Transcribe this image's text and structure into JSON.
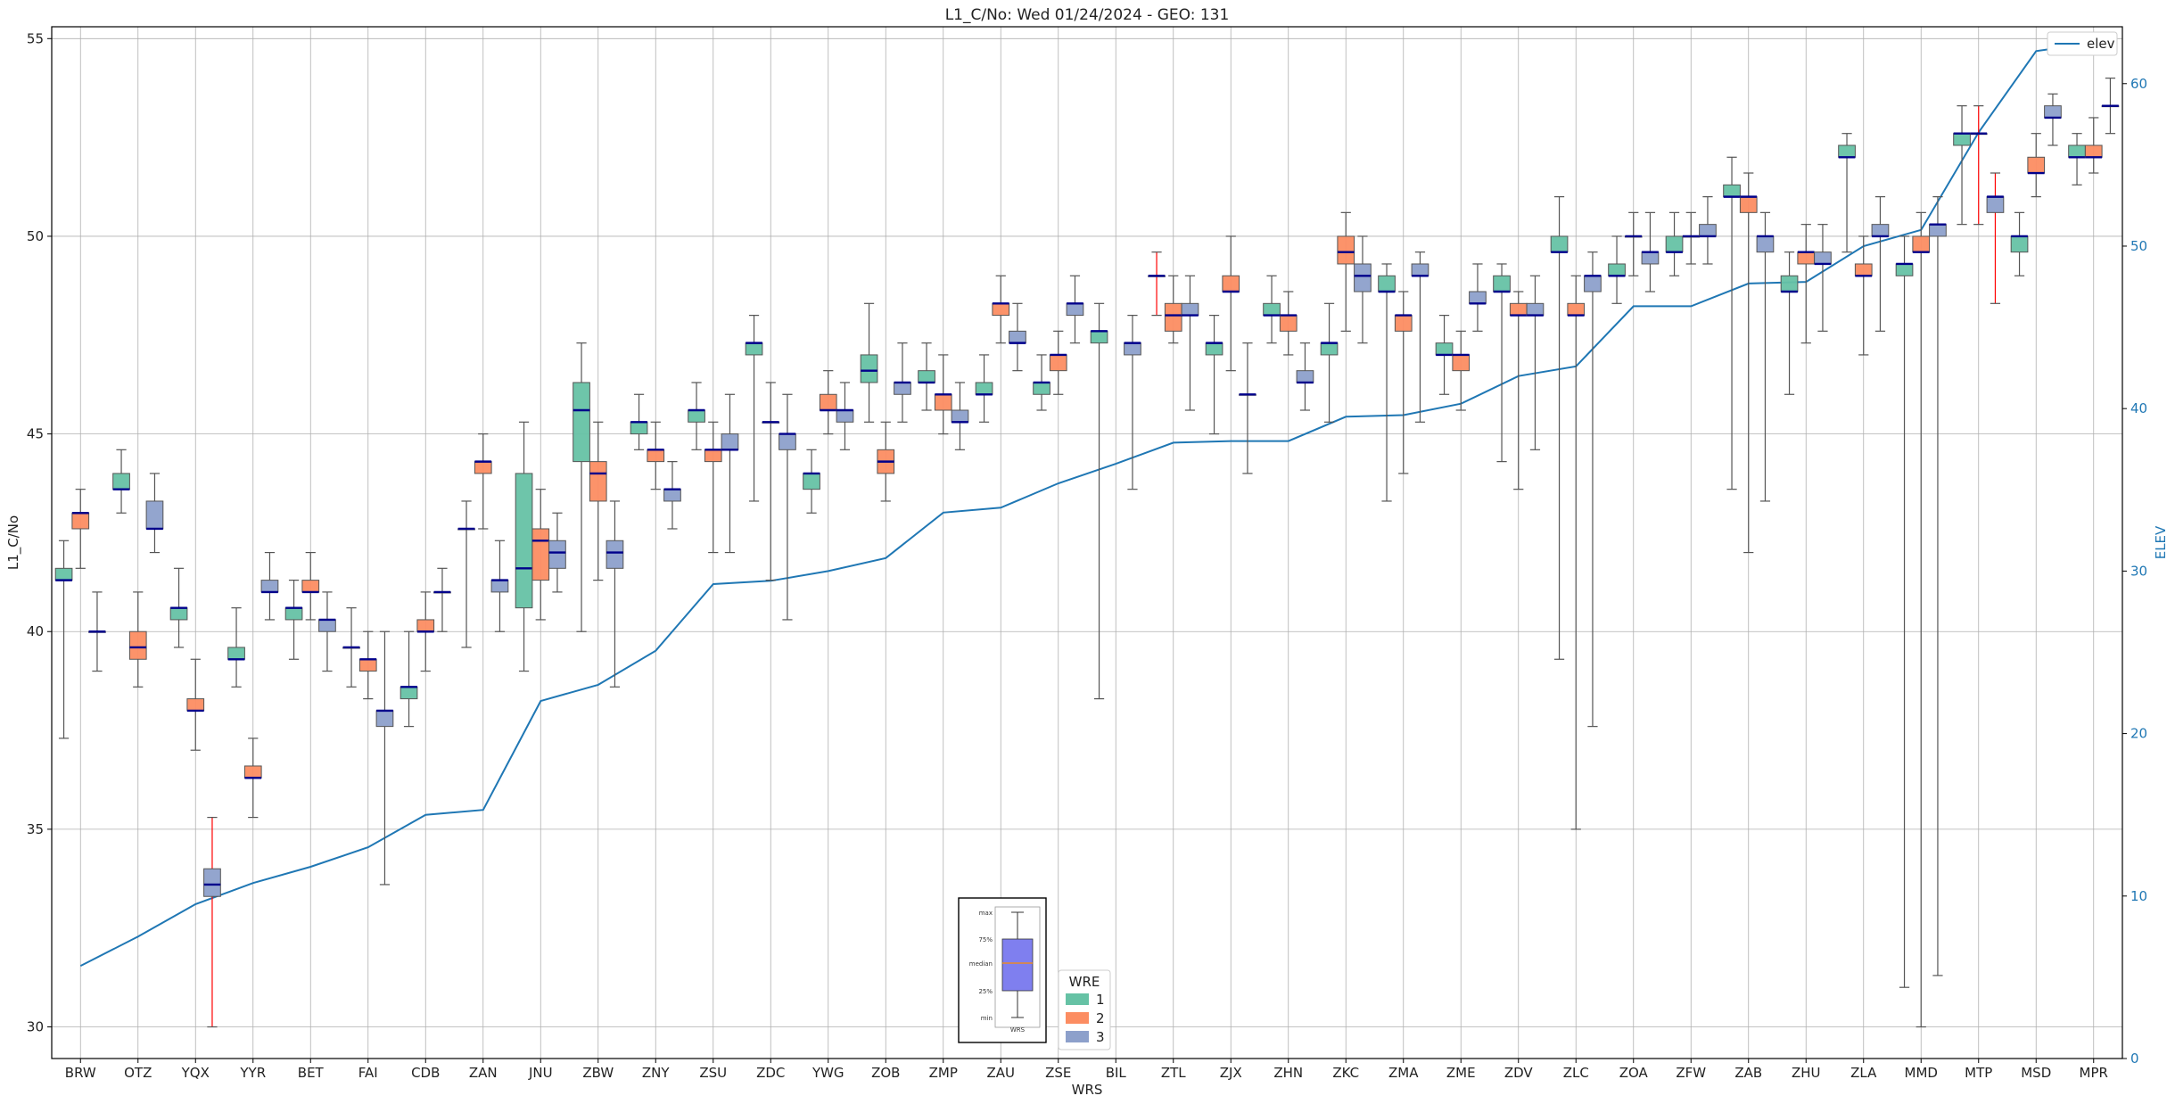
{
  "chart_data": {
    "type": "box",
    "title": "L1_C/No: Wed 01/24/2024 - GEO: 131",
    "xlabel": "WRS",
    "ylabel": "L1_C/No",
    "y2label": "ELEV",
    "ylim": [
      29.2,
      55.3
    ],
    "y2lim": [
      0,
      63.5
    ],
    "yticks": [
      30,
      35,
      40,
      45,
      50,
      55
    ],
    "y2ticks": [
      0,
      10,
      20,
      30,
      40,
      50,
      60
    ],
    "grid": true,
    "colors": {
      "wre1": "#66c2a5",
      "wre2": "#fc8d62",
      "wre3": "#8da0cb",
      "median": "#00008b",
      "whisker": "#555555",
      "outlier_whisker": "#ff0000",
      "elev": "#1f77b4",
      "axis2": "#1f77b4"
    },
    "categories": [
      "BRW",
      "OTZ",
      "YQX",
      "YYR",
      "BET",
      "FAI",
      "CDB",
      "ZAN",
      "JNU",
      "ZBW",
      "ZNY",
      "ZSU",
      "ZDC",
      "YWG",
      "ZOB",
      "ZMP",
      "ZAU",
      "ZSE",
      "BIL",
      "ZTL",
      "ZJX",
      "ZHN",
      "ZKC",
      "ZMA",
      "ZME",
      "ZDV",
      "ZLC",
      "ZOA",
      "ZFW",
      "ZAB",
      "ZHU",
      "ZLA",
      "MMD",
      "MTP",
      "MSD",
      "MPR"
    ],
    "boxes": [
      {
        "cat": "BRW",
        "wre": 1,
        "min": 37.3,
        "q1": 41.3,
        "median": 41.3,
        "q3": 41.6,
        "max": 42.3
      },
      {
        "cat": "BRW",
        "wre": 2,
        "min": 41.6,
        "q1": 42.6,
        "median": 43.0,
        "q3": 43.0,
        "max": 43.6
      },
      {
        "cat": "BRW",
        "wre": 3,
        "min": 39.0,
        "q1": 40.0,
        "median": 40.0,
        "q3": 40.0,
        "max": 41.0
      },
      {
        "cat": "OTZ",
        "wre": 1,
        "min": 43.0,
        "q1": 43.6,
        "median": 43.6,
        "q3": 44.0,
        "max": 44.6
      },
      {
        "cat": "OTZ",
        "wre": 2,
        "min": 38.6,
        "q1": 39.3,
        "median": 39.6,
        "q3": 40.0,
        "max": 41.0
      },
      {
        "cat": "OTZ",
        "wre": 3,
        "min": 42.0,
        "q1": 42.6,
        "median": 42.6,
        "q3": 43.3,
        "max": 44.0
      },
      {
        "cat": "YQX",
        "wre": 1,
        "min": 39.6,
        "q1": 40.3,
        "median": 40.6,
        "q3": 40.6,
        "max": 41.6
      },
      {
        "cat": "YQX",
        "wre": 2,
        "min": 37.0,
        "q1": 38.0,
        "median": 38.0,
        "q3": 38.3,
        "max": 39.3
      },
      {
        "cat": "YQX",
        "wre": 3,
        "min": 30.0,
        "q1": 33.3,
        "median": 33.6,
        "q3": 34.0,
        "max": 35.3,
        "red": true
      },
      {
        "cat": "YYR",
        "wre": 1,
        "min": 38.6,
        "q1": 39.3,
        "median": 39.3,
        "q3": 39.6,
        "max": 40.6
      },
      {
        "cat": "YYR",
        "wre": 2,
        "min": 35.3,
        "q1": 36.3,
        "median": 36.3,
        "q3": 36.6,
        "max": 37.3
      },
      {
        "cat": "YYR",
        "wre": 3,
        "min": 40.3,
        "q1": 41.0,
        "median": 41.0,
        "q3": 41.3,
        "max": 42.0
      },
      {
        "cat": "BET",
        "wre": 1,
        "min": 39.3,
        "q1": 40.3,
        "median": 40.6,
        "q3": 40.6,
        "max": 41.3
      },
      {
        "cat": "BET",
        "wre": 2,
        "min": 40.3,
        "q1": 41.0,
        "median": 41.0,
        "q3": 41.3,
        "max": 42.0
      },
      {
        "cat": "BET",
        "wre": 3,
        "min": 39.0,
        "q1": 40.0,
        "median": 40.3,
        "q3": 40.3,
        "max": 41.0
      },
      {
        "cat": "FAI",
        "wre": 1,
        "min": 38.6,
        "q1": 39.6,
        "median": 39.6,
        "q3": 39.6,
        "max": 40.6
      },
      {
        "cat": "FAI",
        "wre": 2,
        "min": 38.3,
        "q1": 39.0,
        "median": 39.3,
        "q3": 39.3,
        "max": 40.0
      },
      {
        "cat": "FAI",
        "wre": 3,
        "min": 33.6,
        "q1": 37.6,
        "median": 38.0,
        "q3": 38.0,
        "max": 40.0
      },
      {
        "cat": "CDB",
        "wre": 1,
        "min": 37.6,
        "q1": 38.3,
        "median": 38.6,
        "q3": 38.6,
        "max": 40.0
      },
      {
        "cat": "CDB",
        "wre": 2,
        "min": 39.0,
        "q1": 40.0,
        "median": 40.0,
        "q3": 40.3,
        "max": 41.0
      },
      {
        "cat": "CDB",
        "wre": 3,
        "min": 40.0,
        "q1": 41.0,
        "median": 41.0,
        "q3": 41.0,
        "max": 41.6
      },
      {
        "cat": "ZAN",
        "wre": 1,
        "min": 39.6,
        "q1": 42.6,
        "median": 42.6,
        "q3": 42.6,
        "max": 43.3
      },
      {
        "cat": "ZAN",
        "wre": 2,
        "min": 42.6,
        "q1": 44.0,
        "median": 44.3,
        "q3": 44.3,
        "max": 45.0
      },
      {
        "cat": "ZAN",
        "wre": 3,
        "min": 40.0,
        "q1": 41.0,
        "median": 41.3,
        "q3": 41.3,
        "max": 42.3
      },
      {
        "cat": "JNU",
        "wre": 1,
        "min": 39.0,
        "q1": 40.6,
        "median": 41.6,
        "q3": 44.0,
        "max": 45.3
      },
      {
        "cat": "JNU",
        "wre": 2,
        "min": 40.3,
        "q1": 41.3,
        "median": 42.3,
        "q3": 42.6,
        "max": 43.6
      },
      {
        "cat": "JNU",
        "wre": 3,
        "min": 41.0,
        "q1": 41.6,
        "median": 42.0,
        "q3": 42.3,
        "max": 43.0
      },
      {
        "cat": "ZBW",
        "wre": 1,
        "min": 40.0,
        "q1": 44.3,
        "median": 45.6,
        "q3": 46.3,
        "max": 47.3
      },
      {
        "cat": "ZBW",
        "wre": 2,
        "min": 41.3,
        "q1": 43.3,
        "median": 44.0,
        "q3": 44.3,
        "max": 45.3
      },
      {
        "cat": "ZBW",
        "wre": 3,
        "min": 38.6,
        "q1": 41.6,
        "median": 42.0,
        "q3": 42.3,
        "max": 43.3
      },
      {
        "cat": "ZNY",
        "wre": 1,
        "min": 44.6,
        "q1": 45.0,
        "median": 45.3,
        "q3": 45.3,
        "max": 46.0
      },
      {
        "cat": "ZNY",
        "wre": 2,
        "min": 43.6,
        "q1": 44.3,
        "median": 44.6,
        "q3": 44.6,
        "max": 45.3
      },
      {
        "cat": "ZNY",
        "wre": 3,
        "min": 42.6,
        "q1": 43.3,
        "median": 43.6,
        "q3": 43.6,
        "max": 44.3
      },
      {
        "cat": "ZSU",
        "wre": 1,
        "min": 44.6,
        "q1": 45.3,
        "median": 45.6,
        "q3": 45.6,
        "max": 46.3
      },
      {
        "cat": "ZSU",
        "wre": 2,
        "min": 42.0,
        "q1": 44.3,
        "median": 44.6,
        "q3": 44.6,
        "max": 45.3
      },
      {
        "cat": "ZSU",
        "wre": 3,
        "min": 42.0,
        "q1": 44.6,
        "median": 44.6,
        "q3": 45.0,
        "max": 46.0
      },
      {
        "cat": "ZDC",
        "wre": 1,
        "min": 43.3,
        "q1": 47.0,
        "median": 47.3,
        "q3": 47.3,
        "max": 48.0
      },
      {
        "cat": "ZDC",
        "wre": 2,
        "min": 41.3,
        "q1": 45.3,
        "median": 45.3,
        "q3": 45.3,
        "max": 46.3
      },
      {
        "cat": "ZDC",
        "wre": 3,
        "min": 40.3,
        "q1": 44.6,
        "median": 45.0,
        "q3": 45.0,
        "max": 46.0
      },
      {
        "cat": "YWG",
        "wre": 1,
        "min": 43.0,
        "q1": 43.6,
        "median": 44.0,
        "q3": 44.0,
        "max": 44.6
      },
      {
        "cat": "YWG",
        "wre": 2,
        "min": 45.0,
        "q1": 45.6,
        "median": 45.6,
        "q3": 46.0,
        "max": 46.6
      },
      {
        "cat": "YWG",
        "wre": 3,
        "min": 44.6,
        "q1": 45.3,
        "median": 45.6,
        "q3": 45.6,
        "max": 46.3
      },
      {
        "cat": "ZOB",
        "wre": 1,
        "min": 45.3,
        "q1": 46.3,
        "median": 46.6,
        "q3": 47.0,
        "max": 48.3
      },
      {
        "cat": "ZOB",
        "wre": 2,
        "min": 43.3,
        "q1": 44.0,
        "median": 44.3,
        "q3": 44.6,
        "max": 45.3
      },
      {
        "cat": "ZOB",
        "wre": 3,
        "min": 45.3,
        "q1": 46.0,
        "median": 46.3,
        "q3": 46.3,
        "max": 47.3
      },
      {
        "cat": "ZMP",
        "wre": 1,
        "min": 45.6,
        "q1": 46.3,
        "median": 46.3,
        "q3": 46.6,
        "max": 47.3
      },
      {
        "cat": "ZMP",
        "wre": 2,
        "min": 45.0,
        "q1": 45.6,
        "median": 46.0,
        "q3": 46.0,
        "max": 47.0
      },
      {
        "cat": "ZMP",
        "wre": 3,
        "min": 44.6,
        "q1": 45.3,
        "median": 45.3,
        "q3": 45.6,
        "max": 46.3
      },
      {
        "cat": "ZAU",
        "wre": 1,
        "min": 45.3,
        "q1": 46.0,
        "median": 46.0,
        "q3": 46.3,
        "max": 47.0
      },
      {
        "cat": "ZAU",
        "wre": 2,
        "min": 47.3,
        "q1": 48.0,
        "median": 48.3,
        "q3": 48.3,
        "max": 49.0
      },
      {
        "cat": "ZAU",
        "wre": 3,
        "min": 46.6,
        "q1": 47.3,
        "median": 47.3,
        "q3": 47.6,
        "max": 48.3
      },
      {
        "cat": "ZSE",
        "wre": 1,
        "min": 45.6,
        "q1": 46.0,
        "median": 46.3,
        "q3": 46.3,
        "max": 47.0
      },
      {
        "cat": "ZSE",
        "wre": 2,
        "min": 46.0,
        "q1": 46.6,
        "median": 47.0,
        "q3": 47.0,
        "max": 47.6
      },
      {
        "cat": "ZSE",
        "wre": 3,
        "min": 47.3,
        "q1": 48.0,
        "median": 48.3,
        "q3": 48.3,
        "max": 49.0
      },
      {
        "cat": "BIL",
        "wre": 1,
        "min": 38.3,
        "q1": 47.3,
        "median": 47.6,
        "q3": 47.6,
        "max": 48.3
      },
      {
        "cat": "BIL",
        "wre": 3,
        "min": 43.6,
        "q1": 47.0,
        "median": 47.3,
        "q3": 47.3,
        "max": 48.0
      },
      {
        "cat": "ZTL",
        "wre": 1,
        "min": 48.0,
        "q1": 49.0,
        "median": 49.0,
        "q3": 49.0,
        "max": 49.6,
        "red": true
      },
      {
        "cat": "ZTL",
        "wre": 2,
        "min": 47.3,
        "q1": 47.6,
        "median": 48.0,
        "q3": 48.3,
        "max": 49.0
      },
      {
        "cat": "ZTL",
        "wre": 3,
        "min": 45.6,
        "q1": 48.0,
        "median": 48.0,
        "q3": 48.3,
        "max": 49.0
      },
      {
        "cat": "ZJX",
        "wre": 1,
        "min": 45.0,
        "q1": 47.0,
        "median": 47.3,
        "q3": 47.3,
        "max": 48.0
      },
      {
        "cat": "ZJX",
        "wre": 2,
        "min": 46.6,
        "q1": 48.6,
        "median": 48.6,
        "q3": 49.0,
        "max": 50.0
      },
      {
        "cat": "ZJX",
        "wre": 3,
        "min": 44.0,
        "q1": 46.0,
        "median": 46.0,
        "q3": 46.0,
        "max": 47.3
      },
      {
        "cat": "ZHN",
        "wre": 1,
        "min": 47.3,
        "q1": 48.0,
        "median": 48.0,
        "q3": 48.3,
        "max": 49.0
      },
      {
        "cat": "ZHN",
        "wre": 2,
        "min": 47.0,
        "q1": 47.6,
        "median": 48.0,
        "q3": 48.0,
        "max": 48.6
      },
      {
        "cat": "ZHN",
        "wre": 3,
        "min": 45.6,
        "q1": 46.3,
        "median": 46.3,
        "q3": 46.6,
        "max": 47.3
      },
      {
        "cat": "ZKC",
        "wre": 1,
        "min": 45.3,
        "q1": 47.0,
        "median": 47.3,
        "q3": 47.3,
        "max": 48.3
      },
      {
        "cat": "ZKC",
        "wre": 2,
        "min": 47.6,
        "q1": 49.3,
        "median": 49.6,
        "q3": 50.0,
        "max": 50.6
      },
      {
        "cat": "ZKC",
        "wre": 3,
        "min": 47.3,
        "q1": 48.6,
        "median": 49.0,
        "q3": 49.3,
        "max": 50.0
      },
      {
        "cat": "ZMA",
        "wre": 1,
        "min": 43.3,
        "q1": 48.6,
        "median": 48.6,
        "q3": 49.0,
        "max": 49.3
      },
      {
        "cat": "ZMA",
        "wre": 2,
        "min": 44.0,
        "q1": 47.6,
        "median": 48.0,
        "q3": 48.0,
        "max": 48.6
      },
      {
        "cat": "ZMA",
        "wre": 3,
        "min": 45.3,
        "q1": 49.0,
        "median": 49.0,
        "q3": 49.3,
        "max": 49.6
      },
      {
        "cat": "ZME",
        "wre": 1,
        "min": 46.0,
        "q1": 47.0,
        "median": 47.0,
        "q3": 47.3,
        "max": 48.0
      },
      {
        "cat": "ZME",
        "wre": 2,
        "min": 45.6,
        "q1": 46.6,
        "median": 47.0,
        "q3": 47.0,
        "max": 47.6
      },
      {
        "cat": "ZME",
        "wre": 3,
        "min": 47.6,
        "q1": 48.3,
        "median": 48.3,
        "q3": 48.6,
        "max": 49.3
      },
      {
        "cat": "ZDV",
        "wre": 1,
        "min": 44.3,
        "q1": 48.6,
        "median": 48.6,
        "q3": 49.0,
        "max": 49.3
      },
      {
        "cat": "ZDV",
        "wre": 2,
        "min": 43.6,
        "q1": 48.0,
        "median": 48.0,
        "q3": 48.3,
        "max": 48.6
      },
      {
        "cat": "ZDV",
        "wre": 3,
        "min": 44.6,
        "q1": 48.0,
        "median": 48.0,
        "q3": 48.3,
        "max": 49.0
      },
      {
        "cat": "ZLC",
        "wre": 1,
        "min": 39.3,
        "q1": 49.6,
        "median": 49.6,
        "q3": 50.0,
        "max": 51.0
      },
      {
        "cat": "ZLC",
        "wre": 2,
        "min": 35.0,
        "q1": 48.0,
        "median": 48.0,
        "q3": 48.3,
        "max": 49.0
      },
      {
        "cat": "ZLC",
        "wre": 3,
        "min": 37.6,
        "q1": 48.6,
        "median": 49.0,
        "q3": 49.0,
        "max": 49.6
      },
      {
        "cat": "ZOA",
        "wre": 1,
        "min": 48.3,
        "q1": 49.0,
        "median": 49.0,
        "q3": 49.3,
        "max": 50.0
      },
      {
        "cat": "ZOA",
        "wre": 2,
        "min": 49.0,
        "q1": 50.0,
        "median": 50.0,
        "q3": 50.0,
        "max": 50.6
      },
      {
        "cat": "ZOA",
        "wre": 3,
        "min": 48.6,
        "q1": 49.3,
        "median": 49.6,
        "q3": 49.6,
        "max": 50.6
      },
      {
        "cat": "ZFW",
        "wre": 1,
        "min": 49.0,
        "q1": 49.6,
        "median": 49.6,
        "q3": 50.0,
        "max": 50.6
      },
      {
        "cat": "ZFW",
        "wre": 2,
        "min": 49.3,
        "q1": 50.0,
        "median": 50.0,
        "q3": 50.0,
        "max": 50.6
      },
      {
        "cat": "ZFW",
        "wre": 3,
        "min": 49.3,
        "q1": 50.0,
        "median": 50.0,
        "q3": 50.3,
        "max": 51.0
      },
      {
        "cat": "ZAB",
        "wre": 1,
        "min": 43.6,
        "q1": 51.0,
        "median": 51.0,
        "q3": 51.3,
        "max": 52.0
      },
      {
        "cat": "ZAB",
        "wre": 2,
        "min": 42.0,
        "q1": 50.6,
        "median": 51.0,
        "q3": 51.0,
        "max": 51.6
      },
      {
        "cat": "ZAB",
        "wre": 3,
        "min": 43.3,
        "q1": 49.6,
        "median": 50.0,
        "q3": 50.0,
        "max": 50.6
      },
      {
        "cat": "ZHU",
        "wre": 1,
        "min": 46.0,
        "q1": 48.6,
        "median": 48.6,
        "q3": 49.0,
        "max": 49.6
      },
      {
        "cat": "ZHU",
        "wre": 2,
        "min": 47.3,
        "q1": 49.3,
        "median": 49.6,
        "q3": 49.6,
        "max": 50.3
      },
      {
        "cat": "ZHU",
        "wre": 3,
        "min": 47.6,
        "q1": 49.3,
        "median": 49.3,
        "q3": 49.6,
        "max": 50.3
      },
      {
        "cat": "ZLA",
        "wre": 1,
        "min": 49.6,
        "q1": 52.0,
        "median": 52.0,
        "q3": 52.3,
        "max": 52.6
      },
      {
        "cat": "ZLA",
        "wre": 2,
        "min": 47.0,
        "q1": 49.0,
        "median": 49.0,
        "q3": 49.3,
        "max": 50.0
      },
      {
        "cat": "ZLA",
        "wre": 3,
        "min": 47.6,
        "q1": 50.0,
        "median": 50.0,
        "q3": 50.3,
        "max": 51.0
      },
      {
        "cat": "MMD",
        "wre": 1,
        "min": 31.0,
        "q1": 49.0,
        "median": 49.3,
        "q3": 49.3,
        "max": 50.0
      },
      {
        "cat": "MMD",
        "wre": 2,
        "min": 30.0,
        "q1": 49.6,
        "median": 49.6,
        "q3": 50.0,
        "max": 50.6
      },
      {
        "cat": "MMD",
        "wre": 3,
        "min": 31.3,
        "q1": 50.0,
        "median": 50.3,
        "q3": 50.3,
        "max": 51.0
      },
      {
        "cat": "MTP",
        "wre": 1,
        "min": 50.3,
        "q1": 52.3,
        "median": 52.6,
        "q3": 52.6,
        "max": 53.3
      },
      {
        "cat": "MTP",
        "wre": 2,
        "min": 50.3,
        "q1": 52.6,
        "median": 52.6,
        "q3": 52.6,
        "max": 53.3,
        "red": true
      },
      {
        "cat": "MTP",
        "wre": 3,
        "min": 48.3,
        "q1": 50.6,
        "median": 51.0,
        "q3": 51.0,
        "max": 51.6,
        "red": true
      },
      {
        "cat": "MSD",
        "wre": 1,
        "min": 49.0,
        "q1": 49.6,
        "median": 50.0,
        "q3": 50.0,
        "max": 50.6
      },
      {
        "cat": "MSD",
        "wre": 2,
        "min": 51.0,
        "q1": 51.6,
        "median": 51.6,
        "q3": 52.0,
        "max": 52.6
      },
      {
        "cat": "MSD",
        "wre": 3,
        "min": 52.3,
        "q1": 53.0,
        "median": 53.0,
        "q3": 53.3,
        "max": 53.6
      },
      {
        "cat": "MPR",
        "wre": 1,
        "min": 51.3,
        "q1": 52.0,
        "median": 52.0,
        "q3": 52.3,
        "max": 52.6
      },
      {
        "cat": "MPR",
        "wre": 2,
        "min": 51.6,
        "q1": 52.0,
        "median": 52.0,
        "q3": 52.3,
        "max": 53.0
      },
      {
        "cat": "MPR",
        "wre": 3,
        "min": 52.6,
        "q1": 53.3,
        "median": 53.3,
        "q3": 53.3,
        "max": 54.0
      }
    ],
    "elev_series": {
      "name": "elev",
      "values": [
        5.7,
        7.5,
        9.5,
        10.8,
        11.8,
        13.0,
        15.0,
        15.3,
        22.0,
        23.0,
        25.1,
        29.2,
        29.4,
        30.0,
        30.8,
        33.6,
        33.9,
        35.4,
        36.6,
        37.9,
        38.0,
        38.0,
        39.5,
        39.6,
        40.3,
        42.0,
        42.6,
        46.3,
        46.3,
        47.7,
        47.8,
        50.0,
        51.0,
        57.0,
        62.0,
        62.5
      ]
    },
    "legend_elev": {
      "label": "elev",
      "position": "top-right"
    },
    "legend_wre": {
      "title": "WRE",
      "labels": [
        "1",
        "2",
        "3"
      ],
      "position": "bottom-center"
    },
    "inset": {
      "labels": [
        "max",
        "75%",
        "median",
        "25%",
        "min"
      ],
      "caption": "WRS",
      "box_color": "#7f7fef",
      "median_color": "#ff8c00"
    }
  }
}
